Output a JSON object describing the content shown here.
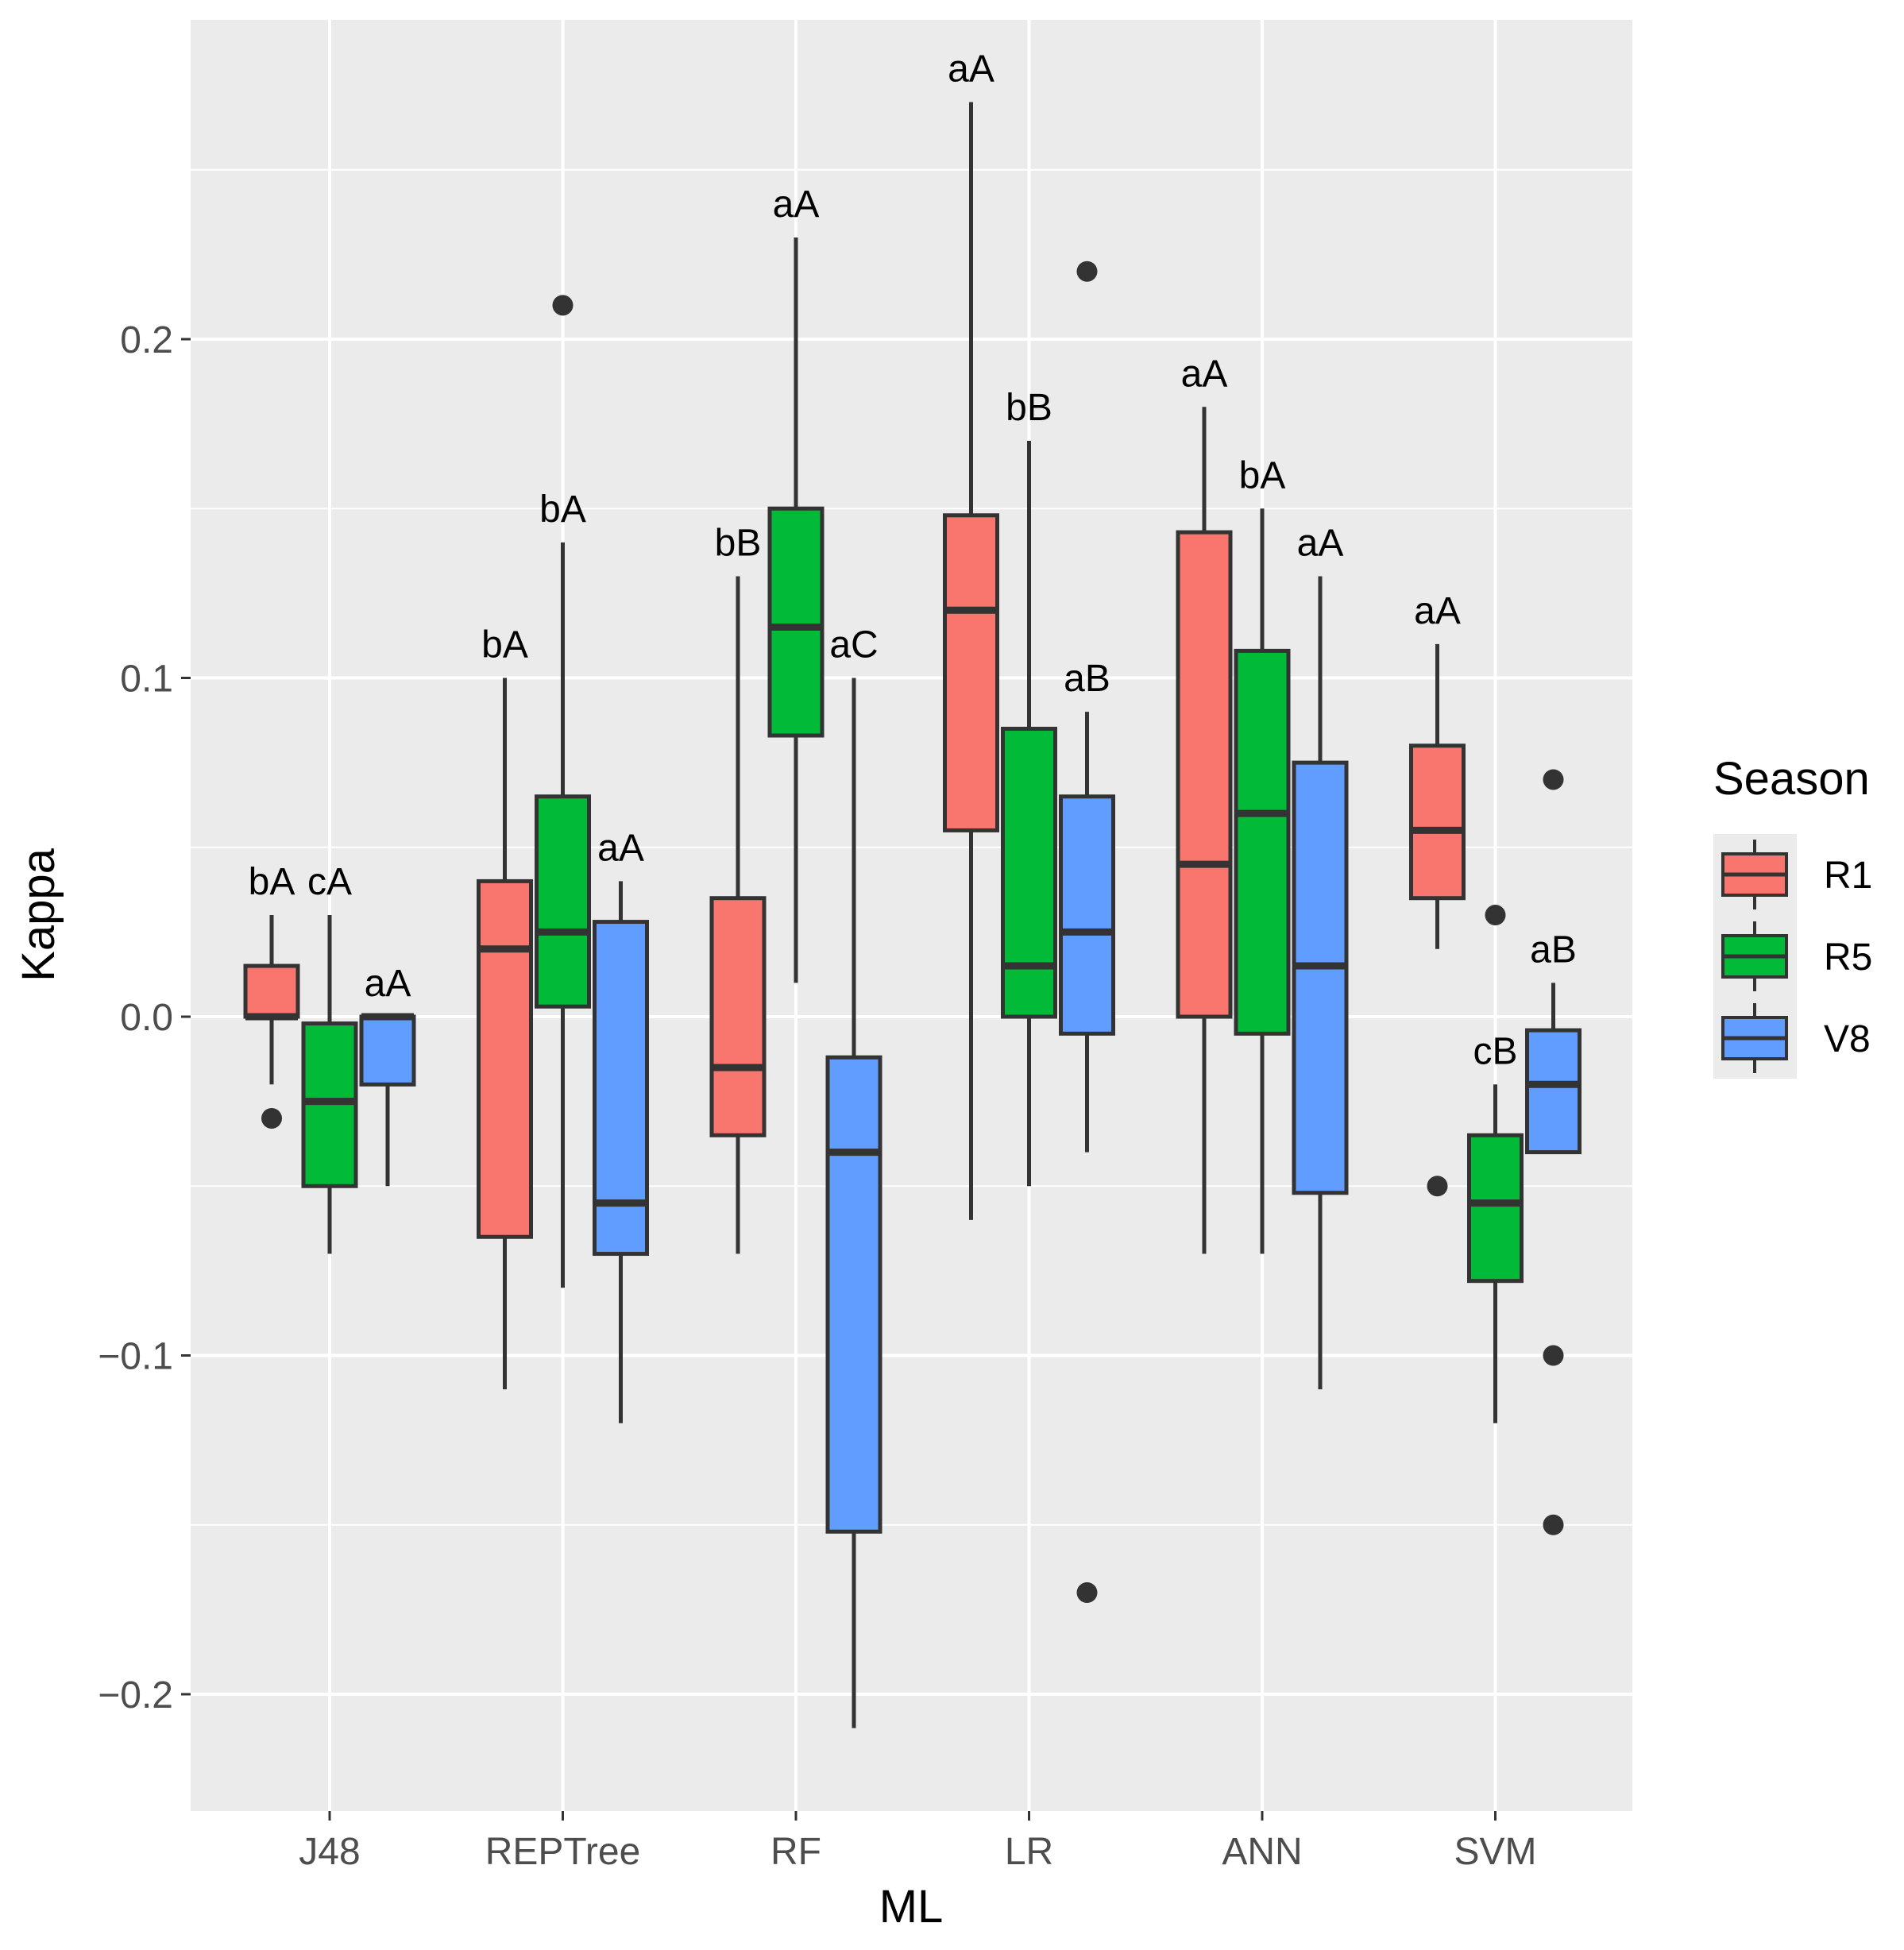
{
  "colors": {
    "panel": "#ebebeb",
    "grid_major": "#ffffff",
    "R1": "#f8766d",
    "R5": "#00ba38",
    "V8": "#619cff",
    "outline": "#333333"
  },
  "chart_data": {
    "type": "boxplot",
    "xlabel": "ML",
    "ylabel": "Kappa",
    "ylim": [
      -0.23,
      0.295
    ],
    "y_ticks": [
      -0.2,
      -0.1,
      0.0,
      0.1,
      0.2
    ],
    "y_tick_labels": [
      "−0.2",
      "−0.1",
      "0.0",
      "0.1",
      "0.2"
    ],
    "categories": [
      "J48",
      "REPTree",
      "RF",
      "LR",
      "ANN",
      "SVM"
    ],
    "grid": true,
    "legend": {
      "title": "Season",
      "position": "right",
      "entries": [
        "R1",
        "R5",
        "V8"
      ]
    },
    "series": [
      {
        "name": "R1",
        "boxes": [
          {
            "whisker_low": -0.02,
            "q1": 0.0,
            "median": 0.0,
            "q3": 0.015,
            "whisker_high": 0.03,
            "outliers": [
              -0.03
            ],
            "label": "bA"
          },
          {
            "whisker_low": -0.11,
            "q1": -0.065,
            "median": 0.02,
            "q3": 0.04,
            "whisker_high": 0.1,
            "outliers": [],
            "label": "bA"
          },
          {
            "whisker_low": -0.07,
            "q1": -0.035,
            "median": -0.015,
            "q3": 0.035,
            "whisker_high": 0.13,
            "outliers": [],
            "label": "bB"
          },
          {
            "whisker_low": -0.06,
            "q1": 0.055,
            "median": 0.12,
            "q3": 0.148,
            "whisker_high": 0.27,
            "outliers": [],
            "label": "aA"
          },
          {
            "whisker_low": -0.07,
            "q1": 0.0,
            "median": 0.045,
            "q3": 0.143,
            "whisker_high": 0.18,
            "outliers": [],
            "label": "aA"
          },
          {
            "whisker_low": 0.02,
            "q1": 0.035,
            "median": 0.055,
            "q3": 0.08,
            "whisker_high": 0.11,
            "outliers": [
              -0.05
            ],
            "label": "aA"
          }
        ]
      },
      {
        "name": "R5",
        "boxes": [
          {
            "whisker_low": -0.07,
            "q1": -0.05,
            "median": -0.025,
            "q3": -0.002,
            "whisker_high": 0.03,
            "outliers": [],
            "label": "cA"
          },
          {
            "whisker_low": -0.08,
            "q1": 0.003,
            "median": 0.025,
            "q3": 0.065,
            "whisker_high": 0.14,
            "outliers": [
              0.21
            ],
            "label": "bA"
          },
          {
            "whisker_low": 0.01,
            "q1": 0.083,
            "median": 0.115,
            "q3": 0.15,
            "whisker_high": 0.23,
            "outliers": [],
            "label": "aA"
          },
          {
            "whisker_low": -0.05,
            "q1": 0.0,
            "median": 0.015,
            "q3": 0.085,
            "whisker_high": 0.17,
            "outliers": [],
            "label": "bB"
          },
          {
            "whisker_low": -0.07,
            "q1": -0.005,
            "median": 0.06,
            "q3": 0.108,
            "whisker_high": 0.15,
            "outliers": [],
            "label": "bA"
          },
          {
            "whisker_low": -0.12,
            "q1": -0.078,
            "median": -0.055,
            "q3": -0.035,
            "whisker_high": -0.02,
            "outliers": [
              0.03
            ],
            "label": "cB"
          }
        ]
      },
      {
        "name": "V8",
        "boxes": [
          {
            "whisker_low": -0.05,
            "q1": -0.02,
            "median": 0.0,
            "q3": 0.0,
            "whisker_high": 0.0,
            "outliers": [],
            "label": "aA"
          },
          {
            "whisker_low": -0.12,
            "q1": -0.07,
            "median": -0.055,
            "q3": 0.028,
            "whisker_high": 0.04,
            "outliers": [],
            "label": "aA"
          },
          {
            "whisker_low": -0.21,
            "q1": -0.152,
            "median": -0.04,
            "q3": -0.012,
            "whisker_high": 0.1,
            "outliers": [],
            "label": "aC"
          },
          {
            "whisker_low": -0.04,
            "q1": -0.005,
            "median": 0.025,
            "q3": 0.065,
            "whisker_high": 0.09,
            "outliers": [
              0.22,
              -0.17
            ],
            "label": "aB"
          },
          {
            "whisker_low": -0.11,
            "q1": -0.052,
            "median": 0.015,
            "q3": 0.075,
            "whisker_high": 0.13,
            "outliers": [],
            "label": "aA"
          },
          {
            "whisker_low": -0.04,
            "q1": -0.04,
            "median": -0.02,
            "q3": -0.004,
            "whisker_high": 0.01,
            "outliers": [
              0.07,
              -0.1,
              -0.15
            ],
            "label": "aB"
          }
        ]
      }
    ]
  }
}
